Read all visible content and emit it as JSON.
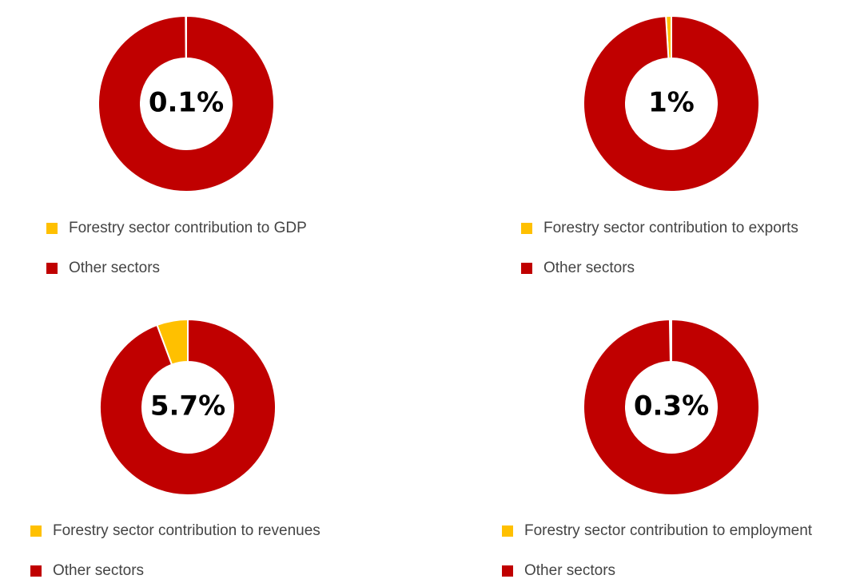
{
  "chart_data": [
    {
      "type": "pie",
      "categories": [
        "Forestry sector contribution to GDP",
        "Other sectors"
      ],
      "values": [
        0.1,
        99.9
      ],
      "value_labels": [
        "0.1%",
        null
      ],
      "colors": [
        "#ffc000",
        "#c00000"
      ]
    },
    {
      "type": "pie",
      "categories": [
        "Forestry sector contribution to exports",
        "Other sectors"
      ],
      "values": [
        1,
        99
      ],
      "value_labels": [
        "1%",
        null
      ],
      "colors": [
        "#ffc000",
        "#c00000"
      ]
    },
    {
      "type": "pie",
      "categories": [
        "Forestry sector contribution to revenues",
        "Other sectors"
      ],
      "values": [
        5.7,
        94.3
      ],
      "value_labels": [
        "5.7%",
        null
      ],
      "colors": [
        "#ffc000",
        "#c00000"
      ]
    },
    {
      "type": "pie",
      "categories": [
        "Forestry sector contribution to employment",
        "Other sectors"
      ],
      "values": [
        0.3,
        99.7
      ],
      "value_labels": [
        "0.3%",
        null
      ],
      "colors": [
        "#ffc000",
        "#c00000"
      ]
    }
  ]
}
